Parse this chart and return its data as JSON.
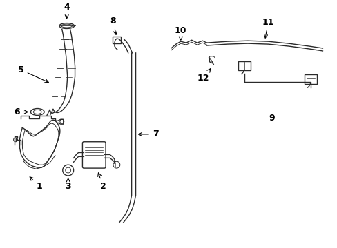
{
  "background_color": "#ffffff",
  "line_color": "#2a2a2a",
  "figsize": [
    4.89,
    3.6
  ],
  "dpi": 100
}
